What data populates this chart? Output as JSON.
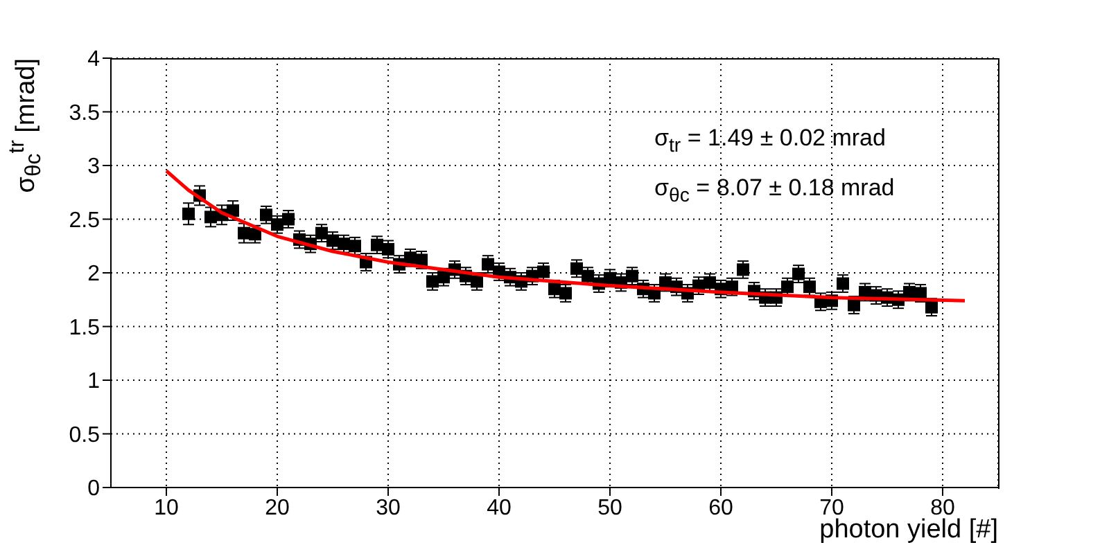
{
  "chart_data": {
    "type": "scatter",
    "xlabel": "photon yield [#]",
    "ylabel": "σ$_{θc}$$^{tr}$ [mrad]",
    "xlim": [
      5,
      85
    ],
    "xticks": [
      10,
      20,
      30,
      40,
      50,
      60,
      70,
      80
    ],
    "ylim": [
      0,
      4
    ],
    "yticks": [
      0,
      0.5,
      1,
      1.5,
      2,
      2.5,
      3,
      3.5,
      4
    ],
    "grid": true,
    "legend": false,
    "annotations": [
      "σ$_{tr}$ = 1.49 ± 0.02 mrad",
      "σ$_{θc}$ = 8.07 ± 0.18 mrad"
    ],
    "series": [
      {
        "marker": "square",
        "color": "#000000",
        "x": [
          12,
          13,
          14,
          15,
          16,
          17,
          18,
          19,
          20,
          21,
          22,
          23,
          24,
          25,
          26,
          27,
          28,
          29,
          30,
          31,
          32,
          33,
          34,
          35,
          36,
          37,
          38,
          39,
          40,
          41,
          42,
          43,
          44,
          45,
          46,
          47,
          48,
          49,
          50,
          51,
          52,
          53,
          54,
          55,
          56,
          57,
          58,
          59,
          60,
          61,
          62,
          63,
          64,
          65,
          66,
          67,
          68,
          69,
          70,
          71,
          72,
          73,
          74,
          75,
          76,
          77,
          78,
          79
        ],
        "values": [
          2.55,
          2.72,
          2.52,
          2.54,
          2.58,
          2.37,
          2.36,
          2.54,
          2.45,
          2.5,
          2.31,
          2.27,
          2.37,
          2.3,
          2.27,
          2.25,
          2.1,
          2.26,
          2.22,
          2.08,
          2.14,
          2.12,
          1.92,
          1.96,
          2.03,
          1.97,
          1.92,
          2.08,
          2.01,
          1.96,
          1.92,
          1.97,
          2.01,
          1.85,
          1.81,
          2.04,
          1.97,
          1.9,
          1.95,
          1.91,
          1.97,
          1.85,
          1.81,
          1.91,
          1.87,
          1.81,
          1.88,
          1.91,
          1.85,
          1.87,
          2.03,
          1.83,
          1.77,
          1.77,
          1.87,
          1.99,
          1.87,
          1.73,
          1.74,
          1.9,
          1.7,
          1.82,
          1.79,
          1.77,
          1.75,
          1.82,
          1.81,
          1.68
        ],
        "errors": [
          0.1,
          0.09,
          0.09,
          0.09,
          0.09,
          0.09,
          0.08,
          0.08,
          0.08,
          0.08,
          0.08,
          0.08,
          0.08,
          0.08,
          0.08,
          0.08,
          0.08,
          0.08,
          0.08,
          0.08,
          0.08,
          0.08,
          0.08,
          0.08,
          0.08,
          0.08,
          0.08,
          0.08,
          0.08,
          0.08,
          0.08,
          0.08,
          0.08,
          0.08,
          0.08,
          0.08,
          0.08,
          0.08,
          0.08,
          0.08,
          0.08,
          0.08,
          0.08,
          0.08,
          0.08,
          0.08,
          0.08,
          0.08,
          0.08,
          0.08,
          0.08,
          0.08,
          0.08,
          0.08,
          0.08,
          0.08,
          0.08,
          0.08,
          0.08,
          0.08,
          0.08,
          0.08,
          0.08,
          0.08,
          0.08,
          0.08,
          0.08,
          0.08
        ]
      },
      {
        "type": "line",
        "marker": "none",
        "color": "#ff0000",
        "x": [
          10,
          12,
          15,
          20,
          25,
          30,
          40,
          50,
          60,
          70,
          82
        ],
        "values": [
          2.95,
          2.77,
          2.56,
          2.34,
          2.2,
          2.1,
          1.96,
          1.88,
          1.82,
          1.77,
          1.74
        ]
      }
    ]
  }
}
